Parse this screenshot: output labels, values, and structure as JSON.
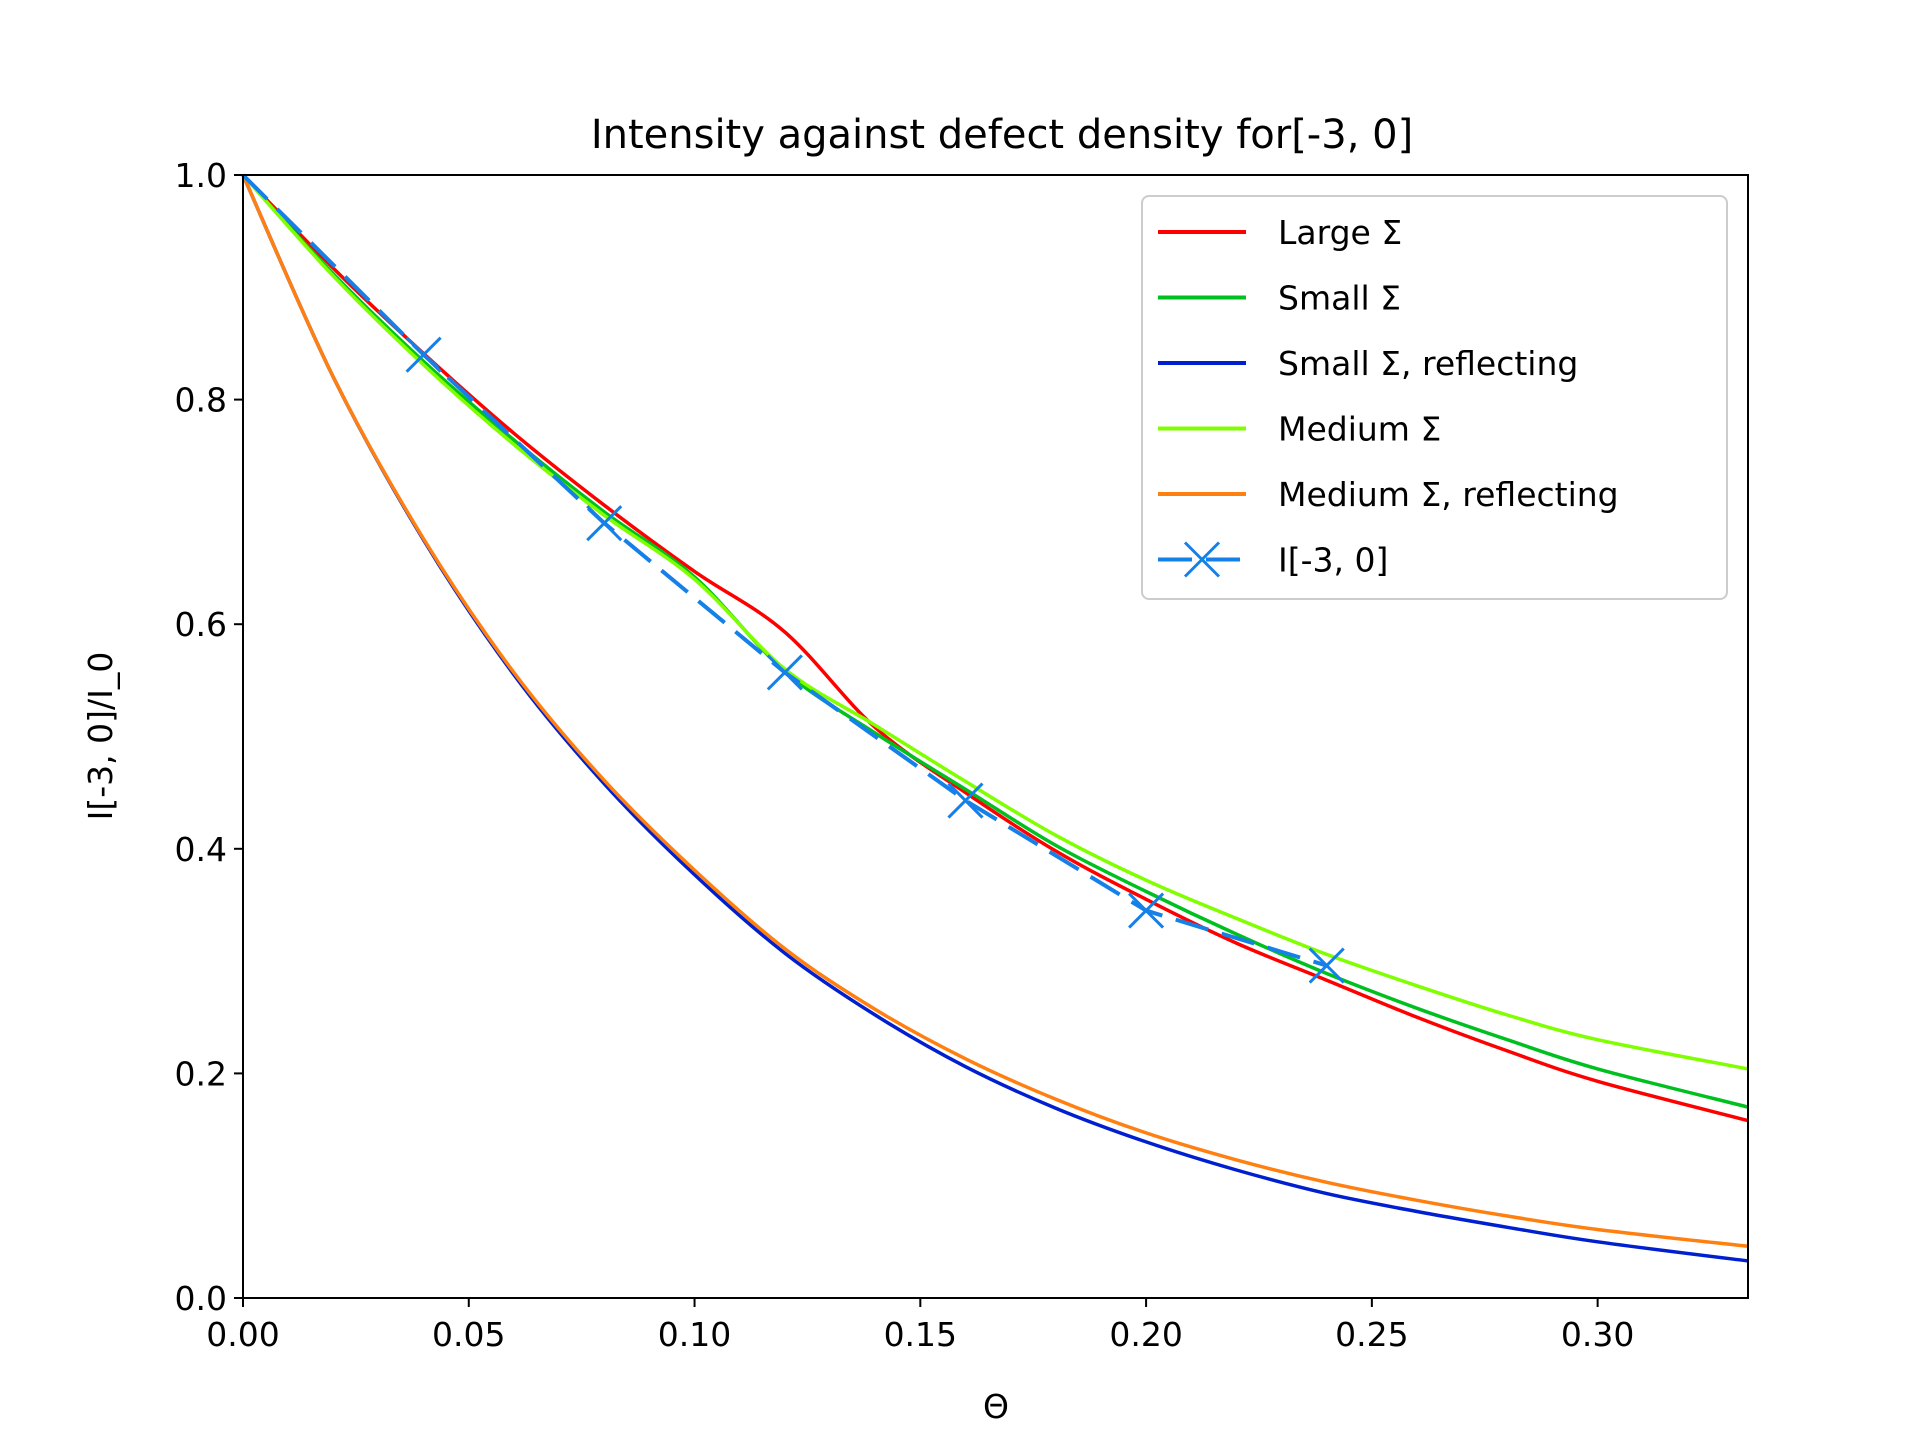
{
  "chart_data": {
    "type": "line",
    "title": "Intensity against defect density for[-3, 0]",
    "xlabel": "Θ",
    "ylabel": "I[-3, 0]/I_0",
    "xlim": [
      0,
      0.3333
    ],
    "ylim": [
      0,
      1.0
    ],
    "xticks": [
      0.0,
      0.05,
      0.1,
      0.15,
      0.2,
      0.25,
      0.3
    ],
    "xtick_labels": [
      "0.00",
      "0.05",
      "0.10",
      "0.15",
      "0.20",
      "0.25",
      "0.30"
    ],
    "yticks": [
      0.0,
      0.2,
      0.4,
      0.6,
      0.8,
      1.0
    ],
    "ytick_labels": [
      "0.0",
      "0.2",
      "0.4",
      "0.6",
      "0.8",
      "1.0"
    ],
    "grid": false,
    "legend_position": "top-right",
    "series": [
      {
        "name": "Large Σ",
        "color": "#ff0000",
        "style": "solid",
        "x": [
          0,
          0.02,
          0.04,
          0.06,
          0.08,
          0.1,
          0.12,
          0.14,
          0.16,
          0.18,
          0.2,
          0.22,
          0.24,
          0.26,
          0.28,
          0.3,
          0.3333
        ],
        "y": [
          1.0,
          0.917,
          0.841,
          0.77,
          0.706,
          0.647,
          0.593,
          0.508,
          0.45,
          0.398,
          0.355,
          0.316,
          0.283,
          0.25,
          0.22,
          0.193,
          0.158
        ]
      },
      {
        "name": "Small Σ",
        "color": "#00c020",
        "style": "solid",
        "x": [
          0,
          0.02,
          0.04,
          0.06,
          0.08,
          0.1,
          0.12,
          0.14,
          0.16,
          0.18,
          0.2,
          0.22,
          0.24,
          0.26,
          0.28,
          0.3,
          0.3333
        ],
        "y": [
          1.0,
          0.912,
          0.834,
          0.764,
          0.7,
          0.642,
          0.558,
          0.503,
          0.453,
          0.403,
          0.362,
          0.324,
          0.289,
          0.258,
          0.23,
          0.204,
          0.17
        ]
      },
      {
        "name": "Small Σ, reflecting",
        "color": "#0020d0",
        "style": "solid",
        "x": [
          0,
          0.02,
          0.04,
          0.06,
          0.08,
          0.1,
          0.12,
          0.14,
          0.16,
          0.18,
          0.2,
          0.22,
          0.24,
          0.26,
          0.28,
          0.3,
          0.3333
        ],
        "y": [
          1.0,
          0.82,
          0.675,
          0.555,
          0.458,
          0.377,
          0.307,
          0.252,
          0.206,
          0.169,
          0.139,
          0.114,
          0.093,
          0.077,
          0.063,
          0.05,
          0.033
        ]
      },
      {
        "name": "Medium Σ",
        "color": "#80ff00",
        "style": "solid",
        "x": [
          0,
          0.02,
          0.04,
          0.06,
          0.08,
          0.1,
          0.12,
          0.14,
          0.16,
          0.18,
          0.2,
          0.22,
          0.24,
          0.26,
          0.28,
          0.3,
          0.3333
        ],
        "y": [
          1.0,
          0.91,
          0.831,
          0.76,
          0.697,
          0.64,
          0.56,
          0.51,
          0.46,
          0.412,
          0.372,
          0.338,
          0.306,
          0.278,
          0.252,
          0.23,
          0.204
        ]
      },
      {
        "name": "Medium Σ, reflecting",
        "color": "#ff8010",
        "style": "solid",
        "x": [
          0,
          0.02,
          0.04,
          0.06,
          0.08,
          0.1,
          0.12,
          0.14,
          0.16,
          0.18,
          0.2,
          0.22,
          0.24,
          0.26,
          0.28,
          0.3,
          0.3333
        ],
        "y": [
          1.0,
          0.82,
          0.676,
          0.557,
          0.461,
          0.381,
          0.311,
          0.257,
          0.213,
          0.177,
          0.147,
          0.123,
          0.103,
          0.087,
          0.073,
          0.061,
          0.046
        ]
      },
      {
        "name": "I[-3, 0]",
        "color": "#1580e8",
        "style": "dashed-with-x-markers",
        "x": [
          0.0,
          0.04,
          0.08,
          0.12,
          0.16,
          0.2,
          0.24
        ],
        "y": [
          1.0,
          0.84,
          0.69,
          0.557,
          0.443,
          0.345,
          0.296
        ]
      }
    ]
  }
}
